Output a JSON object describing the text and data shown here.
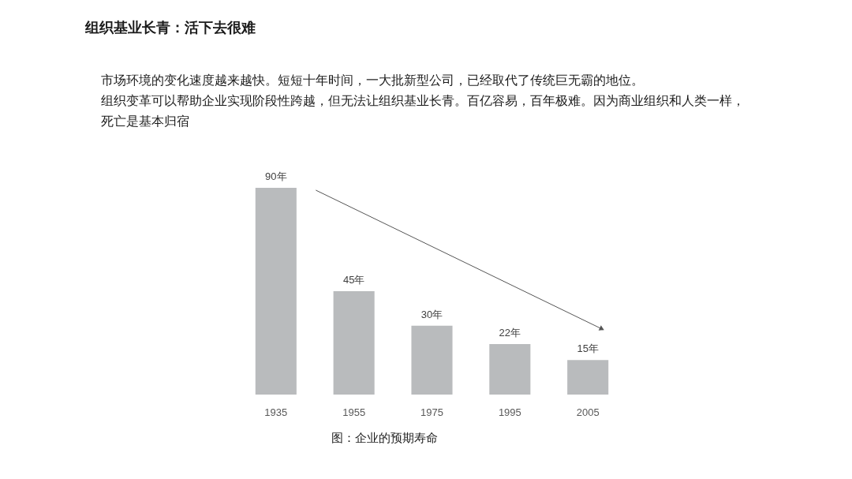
{
  "chart_data": {
    "type": "bar",
    "title": "组织基业长青：活下去很难",
    "annotations": [
      "市场环境的变化速度越来越快。短短十年时间，一大批新型公司，已经取代了传统巨无霸的地位。",
      "组织变革可以帮助企业实现阶段性跨越，但无法让组织基业长青。百亿容易，百年极难。因为商业组织和人类一样，死亡是基本归宿",
      "图：企业的预期寿命"
    ],
    "categories": [
      "1935",
      "1955",
      "1975",
      "1995",
      "2005"
    ],
    "values": [
      90,
      45,
      30,
      22,
      15
    ],
    "value_labels": [
      "90年",
      "45年",
      "30年",
      "22年",
      "15年"
    ],
    "color": "#b9bbbd",
    "tick_labels": "x"
  }
}
